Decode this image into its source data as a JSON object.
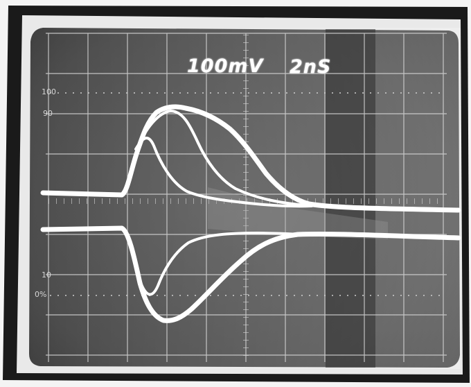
{
  "scope": {
    "volts_per_div": "100mV",
    "time_per_div": "2nS",
    "graticule_labels": {
      "top_100": "100",
      "top_90": "90",
      "bottom_10": "10",
      "bottom_0": "0%"
    }
  },
  "colors": {
    "screen": "#4e4e4e",
    "bezel": "#e9e9e9",
    "trace": "#ffffff",
    "grid": "#d8d8d8"
  }
}
